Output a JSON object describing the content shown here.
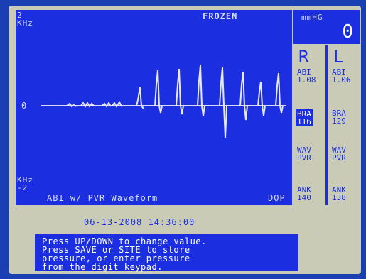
{
  "plot": {
    "status": "FROZEN",
    "top_scale": [
      "2",
      "KHz"
    ],
    "zero_label": "0",
    "bottom_scale": [
      "KHz",
      "-2"
    ],
    "caption": "ABI w/ PVR Waveform",
    "mode": "DOP"
  },
  "pressure": {
    "unit": "mmHG",
    "value": "0"
  },
  "right": {
    "heading": "R",
    "abi": [
      "ABI",
      "1.08"
    ],
    "bra": [
      "BRA",
      "116"
    ],
    "wav": [
      "WAV",
      "PVR"
    ],
    "ank": [
      "ANK",
      "140"
    ]
  },
  "left": {
    "heading": "L",
    "abi": [
      "ABI",
      "1.06"
    ],
    "bra": [
      "BRA",
      "129"
    ],
    "wav": [
      "WAV",
      "PVR"
    ],
    "ank": [
      "ANK",
      "138"
    ]
  },
  "datetime": "06-13-2008 14:36:00",
  "message": [
    "Press UP/DOWN to change value.",
    "Press SAVE or SITE to store",
    "pressure, or enter pressure",
    "from the digit keypad."
  ]
}
